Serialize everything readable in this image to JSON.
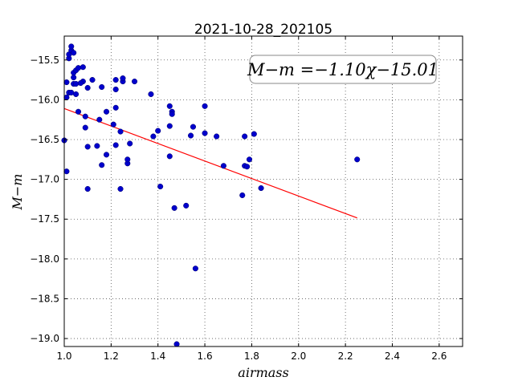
{
  "chart_data": {
    "type": "scatter",
    "title": "2021-10-28_202105",
    "xlabel": "airmass",
    "ylabel": "M−m",
    "xlim": [
      1.0,
      2.7
    ],
    "ylim": [
      -19.1,
      -15.2
    ],
    "xticks": [
      "1.0",
      "1.2",
      "1.4",
      "1.6",
      "1.8",
      "2.0",
      "2.2",
      "2.4",
      "2.6"
    ],
    "yticks": [
      "−15.5",
      "−16.0",
      "−16.5",
      "−17.0",
      "−17.5",
      "−18.0",
      "−18.5",
      "−19.0"
    ],
    "grid": true,
    "annotation": "M−m =−1.10χ−15.01",
    "colors": {
      "points": "#0000cc",
      "fit": "#ff0000"
    },
    "fit": {
      "slope": -1.1,
      "intercept": -15.01,
      "x_range": [
        1.0,
        2.25
      ]
    },
    "points": [
      [
        1.0,
        -16.51
      ],
      [
        1.01,
        -16.9
      ],
      [
        1.01,
        -15.97
      ],
      [
        1.01,
        -15.78
      ],
      [
        1.02,
        -15.91
      ],
      [
        1.03,
        -15.91
      ],
      [
        1.02,
        -15.48
      ],
      [
        1.02,
        -15.43
      ],
      [
        1.03,
        -15.38
      ],
      [
        1.03,
        -15.33
      ],
      [
        1.04,
        -15.41
      ],
      [
        1.04,
        -15.66
      ],
      [
        1.04,
        -15.72
      ],
      [
        1.04,
        -15.8
      ],
      [
        1.05,
        -15.8
      ],
      [
        1.05,
        -15.63
      ],
      [
        1.06,
        -15.6
      ],
      [
        1.08,
        -15.59
      ],
      [
        1.08,
        -15.77
      ],
      [
        1.07,
        -15.79
      ],
      [
        1.05,
        -15.93
      ],
      [
        1.06,
        -16.15
      ],
      [
        1.09,
        -16.21
      ],
      [
        1.09,
        -16.35
      ],
      [
        1.1,
        -16.59
      ],
      [
        1.1,
        -17.12
      ],
      [
        1.1,
        -15.85
      ],
      [
        1.12,
        -15.75
      ],
      [
        1.14,
        -16.58
      ],
      [
        1.15,
        -16.25
      ],
      [
        1.16,
        -15.84
      ],
      [
        1.16,
        -16.82
      ],
      [
        1.18,
        -16.15
      ],
      [
        1.18,
        -16.69
      ],
      [
        1.21,
        -16.31
      ],
      [
        1.22,
        -16.57
      ],
      [
        1.22,
        -16.1
      ],
      [
        1.22,
        -15.87
      ],
      [
        1.22,
        -15.75
      ],
      [
        1.24,
        -16.4
      ],
      [
        1.24,
        -17.12
      ],
      [
        1.25,
        -15.77
      ],
      [
        1.25,
        -15.73
      ],
      [
        1.27,
        -16.8
      ],
      [
        1.27,
        -16.75
      ],
      [
        1.28,
        -16.55
      ],
      [
        1.3,
        -15.77
      ],
      [
        1.37,
        -15.93
      ],
      [
        1.38,
        -16.46
      ],
      [
        1.4,
        -16.39
      ],
      [
        1.41,
        -17.09
      ],
      [
        1.45,
        -16.71
      ],
      [
        1.45,
        -16.33
      ],
      [
        1.45,
        -16.08
      ],
      [
        1.46,
        -16.15
      ],
      [
        1.46,
        -16.18
      ],
      [
        1.47,
        -17.36
      ],
      [
        1.48,
        -19.07
      ],
      [
        1.52,
        -17.33
      ],
      [
        1.54,
        -16.45
      ],
      [
        1.55,
        -16.34
      ],
      [
        1.56,
        -18.12
      ],
      [
        1.6,
        -16.08
      ],
      [
        1.6,
        -16.42
      ],
      [
        1.65,
        -16.46
      ],
      [
        1.68,
        -16.83
      ],
      [
        1.76,
        -17.2
      ],
      [
        1.77,
        -16.83
      ],
      [
        1.77,
        -16.46
      ],
      [
        1.78,
        -16.84
      ],
      [
        1.79,
        -16.75
      ],
      [
        1.81,
        -16.43
      ],
      [
        1.84,
        -17.11
      ],
      [
        2.25,
        -16.75
      ]
    ]
  }
}
